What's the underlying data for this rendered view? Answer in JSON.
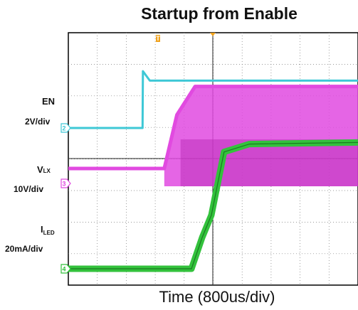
{
  "chart_data": {
    "type": "line",
    "title": "Startup from Enable",
    "xlabel": "Time (800us/div)",
    "x_units": "us",
    "x_per_div": 800,
    "xlim": [
      0,
      8000
    ],
    "grid": true,
    "channels": [
      {
        "id": "ch2",
        "marker": "2",
        "label": "EN",
        "label_sub": "",
        "scale": "2V/div",
        "color": "#3ec8d6",
        "volts_per_div": 2,
        "units": "V",
        "points": [
          [
            0,
            0
          ],
          [
            2050,
            0
          ],
          [
            2060,
            3.6
          ],
          [
            2250,
            3.0
          ],
          [
            8000,
            3.0
          ]
        ]
      },
      {
        "id": "ch3",
        "marker": "3",
        "label": "V",
        "label_sub": "LX",
        "scale": "10V/div",
        "color": "#e14ae0",
        "volts_per_div": 10,
        "units": "V",
        "points": [
          [
            0,
            0
          ],
          [
            2650,
            0
          ],
          [
            3000,
            17
          ],
          [
            3500,
            26
          ],
          [
            8000,
            26
          ]
        ]
      },
      {
        "id": "ch4",
        "marker": "4",
        "label": "I",
        "label_sub": "LED",
        "scale": "20mA/div",
        "color": "#33c23c",
        "amps_per_div": 0.02,
        "units": "mA",
        "points": [
          [
            0,
            0
          ],
          [
            3400,
            0
          ],
          [
            3700,
            20
          ],
          [
            3950,
            34
          ],
          [
            4300,
            74
          ],
          [
            5000,
            79
          ],
          [
            8000,
            80
          ]
        ]
      }
    ],
    "trigger_marker": "T"
  }
}
